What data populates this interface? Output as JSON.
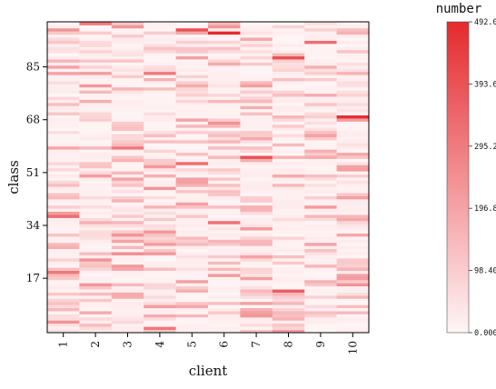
{
  "chart_data": {
    "type": "heatmap",
    "xlabel": "client",
    "ylabel": "class",
    "x_categories": [
      "1",
      "2",
      "3",
      "4",
      "5",
      "6",
      "7",
      "8",
      "9",
      "10"
    ],
    "y_tick_labels": [
      "17",
      "34",
      "51",
      "68",
      "85"
    ],
    "y_tick_values": [
      17,
      34,
      51,
      68,
      85
    ],
    "y_range": [
      0,
      99
    ],
    "colorbar": {
      "title": "number",
      "tick_labels": [
        "0.000",
        "98.40",
        "196.8",
        "295.2",
        "393.6",
        "492.0"
      ],
      "tick_values": [
        0,
        98.4,
        196.8,
        295.2,
        393.6,
        492.0
      ],
      "min": 0,
      "max": 492,
      "color_low": "#fff5f6",
      "color_high": "#e52a2e"
    },
    "highlights": [
      {
        "client": "1",
        "class": 85,
        "value": 200
      },
      {
        "client": "1",
        "class": 37,
        "value": 330
      },
      {
        "client": "1",
        "class": 19,
        "value": 300
      },
      {
        "client": "2",
        "class": 99,
        "value": 300
      },
      {
        "client": "2",
        "class": 15,
        "value": 230
      },
      {
        "client": "3",
        "class": 59,
        "value": 300
      },
      {
        "client": "3",
        "class": 25,
        "value": 250
      },
      {
        "client": "4",
        "class": 83,
        "value": 300
      },
      {
        "client": "4",
        "class": 1,
        "value": 300
      },
      {
        "client": "5",
        "class": 97,
        "value": 400
      },
      {
        "client": "5",
        "class": 54,
        "value": 330
      },
      {
        "client": "6",
        "class": 96,
        "value": 492
      },
      {
        "client": "6",
        "class": 35,
        "value": 320
      },
      {
        "client": "7",
        "class": 100,
        "value": 400
      },
      {
        "client": "7",
        "class": 56,
        "value": 400
      },
      {
        "client": "8",
        "class": 88,
        "value": 400
      },
      {
        "client": "8",
        "class": 13,
        "value": 370
      },
      {
        "client": "9",
        "class": 93,
        "value": 330
      },
      {
        "client": "10",
        "class": 69,
        "value": 480
      }
    ]
  }
}
